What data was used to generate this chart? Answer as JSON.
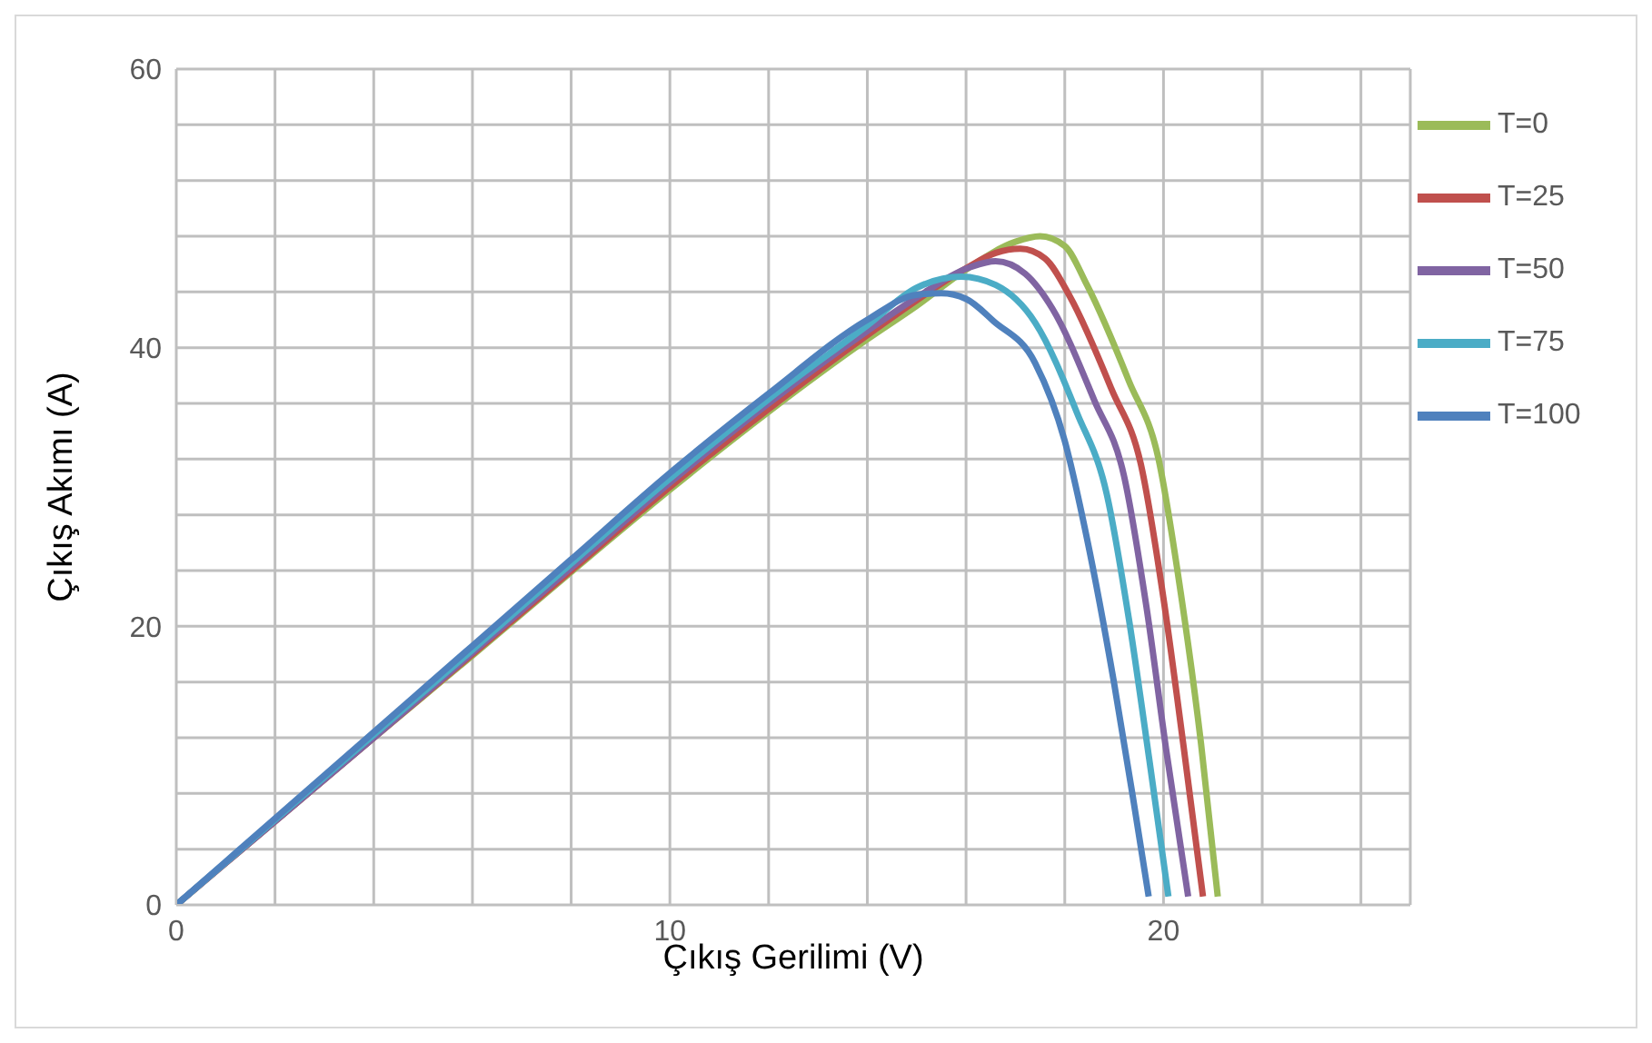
{
  "chart_data": {
    "type": "line",
    "xlabel": "Çıkış Gerilimi (V)",
    "ylabel": "Çıkış Akımı (A)",
    "xlim": [
      0,
      25
    ],
    "ylim": [
      0,
      60
    ],
    "xticks": [
      0,
      {
        "value": 2,
        "label": null
      },
      {
        "value": 4,
        "label": null
      },
      {
        "value": 6,
        "label": null
      },
      {
        "value": 8,
        "label": null
      },
      10,
      {
        "value": 12,
        "label": null
      },
      {
        "value": 14,
        "label": null
      },
      {
        "value": 16,
        "label": null
      },
      {
        "value": 18,
        "label": null
      },
      20,
      {
        "value": 22,
        "label": null
      },
      {
        "value": 24,
        "label": null
      }
    ],
    "yticks": [
      0,
      {
        "value": 4,
        "label": null
      },
      {
        "value": 8,
        "label": null
      },
      {
        "value": 12,
        "label": null
      },
      {
        "value": 16,
        "label": null
      },
      20,
      {
        "value": 24,
        "label": null
      },
      {
        "value": 28,
        "label": null
      },
      {
        "value": 32,
        "label": null
      },
      {
        "value": 36,
        "label": null
      },
      40,
      {
        "value": 44,
        "label": null
      },
      {
        "value": 48,
        "label": null
      },
      {
        "value": 52,
        "label": null
      },
      {
        "value": 56,
        "label": null
      },
      60
    ],
    "grid": true,
    "legend": "top right",
    "series": [
      {
        "name": "T=0",
        "color": "#9bbb59",
        "x": [
          0,
          2,
          4,
          6,
          8,
          10,
          12,
          14,
          15,
          16,
          17,
          17.5,
          18,
          18.45,
          19.3,
          19.9,
          20.35,
          20.76,
          21.1
        ],
        "values": [
          0,
          6,
          12,
          17.9,
          23.9,
          29.8,
          35.4,
          40.6,
          43,
          45.6,
          47.6,
          48,
          47.3,
          44.5,
          37.6,
          32,
          22.4,
          11.6,
          0.6
        ]
      },
      {
        "name": "T=25",
        "color": "#c0504d",
        "x": [
          0,
          2,
          4,
          6,
          8,
          10,
          12,
          14,
          15,
          16,
          16.6,
          17.1,
          17.6,
          18.1,
          18.95,
          19.55,
          20,
          20.41,
          20.8
        ],
        "values": [
          0,
          6,
          12,
          18,
          24,
          30,
          35.6,
          40.9,
          43.4,
          45.7,
          46.8,
          47.1,
          46.4,
          43.7,
          37,
          31.5,
          22,
          11.3,
          0.6
        ]
      },
      {
        "name": "T=50",
        "color": "#8064a2",
        "x": [
          0,
          2,
          4,
          6,
          8,
          10,
          12,
          14,
          15,
          16.1,
          16.6,
          17.2,
          17.75,
          18.6,
          19.2,
          19.65,
          20.06,
          20.5
        ],
        "values": [
          0,
          6,
          12,
          18.1,
          24.2,
          30.3,
          36,
          41.2,
          43.6,
          45.8,
          46.2,
          45.3,
          42.8,
          36.2,
          30.8,
          21.5,
          11,
          0.6
        ]
      },
      {
        "name": "T=75",
        "color": "#4bacc6",
        "x": [
          0,
          2,
          4,
          6,
          8,
          10,
          12,
          14,
          15,
          15.9,
          16.6,
          17.4,
          18.25,
          18.85,
          19.3,
          19.71,
          20.1
        ],
        "values": [
          0,
          6.1,
          12.2,
          18.3,
          24.5,
          30.6,
          36.3,
          41.6,
          44.3,
          45.1,
          44.5,
          41.8,
          35.3,
          29.5,
          20.5,
          10.5,
          0.6
        ]
      },
      {
        "name": "T=100",
        "color": "#4f81bd",
        "x": [
          0,
          2,
          4,
          6,
          8,
          10,
          12,
          14,
          15,
          15.5,
          16,
          16.56,
          17.4,
          18,
          18.45,
          19,
          19.4,
          19.7
        ],
        "values": [
          0,
          6.2,
          12.4,
          18.6,
          24.8,
          31,
          36.7,
          42,
          43.8,
          43.9,
          43.5,
          41.9,
          38.9,
          33.3,
          26.3,
          15.9,
          7.3,
          0.6
        ]
      }
    ]
  }
}
